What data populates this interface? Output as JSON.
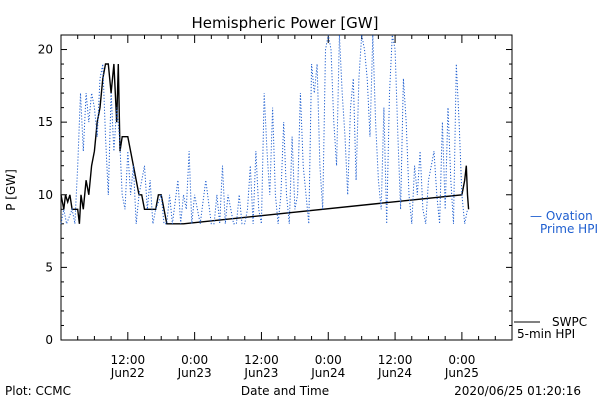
{
  "chart_data": {
    "type": "line",
    "title": "Hemispheric Power [GW]",
    "ylabel": "P [GW]",
    "xlabel": "Date and Time",
    "ylim": [
      0,
      21
    ],
    "yticks": [
      0,
      5,
      10,
      15,
      20
    ],
    "xlim_hours": [
      0,
      81
    ],
    "xticks": [
      {
        "h": 12,
        "time": "12:00",
        "date": "Jun22"
      },
      {
        "h": 24,
        "time": "0:00",
        "date": "Jun23"
      },
      {
        "h": 36,
        "time": "12:00",
        "date": "Jun23"
      },
      {
        "h": 48,
        "time": "0:00",
        "date": "Jun24"
      },
      {
        "h": 60,
        "time": "12:00",
        "date": "Jun24"
      },
      {
        "h": 72,
        "time": "0:00",
        "date": "Jun25"
      }
    ],
    "series": [
      {
        "name": "SWPC 5-min HPI",
        "color": "#000000",
        "style": "solid",
        "points": [
          [
            0,
            10
          ],
          [
            0.5,
            9
          ],
          [
            0.8,
            10
          ],
          [
            1.2,
            9.5
          ],
          [
            1.6,
            10
          ],
          [
            2,
            9
          ],
          [
            3,
            9
          ],
          [
            3.3,
            8
          ],
          [
            3.6,
            10
          ],
          [
            4,
            9
          ],
          [
            4.5,
            11
          ],
          [
            5,
            10
          ],
          [
            5.5,
            12
          ],
          [
            6,
            13
          ],
          [
            6.5,
            15
          ],
          [
            7,
            16
          ],
          [
            7.5,
            18
          ],
          [
            8,
            19
          ],
          [
            8.5,
            19
          ],
          [
            9,
            17
          ],
          [
            9.5,
            19
          ],
          [
            10,
            15
          ],
          [
            10.3,
            19
          ],
          [
            10.6,
            13
          ],
          [
            11,
            14
          ],
          [
            11.5,
            14
          ],
          [
            12,
            14
          ],
          [
            12.5,
            13
          ],
          [
            13,
            12
          ],
          [
            13.5,
            11
          ],
          [
            14,
            10
          ],
          [
            14.5,
            10
          ],
          [
            15,
            9
          ],
          [
            15.5,
            9
          ],
          [
            16,
            9
          ],
          [
            16.5,
            9
          ],
          [
            17,
            9
          ],
          [
            17.5,
            10
          ],
          [
            18,
            10
          ],
          [
            18.5,
            9
          ],
          [
            19,
            8
          ],
          [
            20,
            8
          ],
          [
            22,
            8
          ],
          [
            72,
            10
          ],
          [
            72.5,
            11
          ],
          [
            72.8,
            12
          ],
          [
            73,
            10
          ],
          [
            73.2,
            9
          ]
        ]
      },
      {
        "name": "Ovation Prime HPI",
        "color": "#1f5fd0",
        "style": "dotted",
        "points": [
          [
            0,
            8
          ],
          [
            0.5,
            9
          ],
          [
            1,
            8
          ],
          [
            2,
            9
          ],
          [
            2.5,
            8
          ],
          [
            3,
            12
          ],
          [
            3.5,
            17
          ],
          [
            4,
            13
          ],
          [
            4.5,
            17
          ],
          [
            5,
            15
          ],
          [
            5.5,
            17
          ],
          [
            6,
            16
          ],
          [
            6.5,
            14
          ],
          [
            7,
            18
          ],
          [
            7.5,
            19
          ],
          [
            8,
            14
          ],
          [
            8.5,
            10
          ],
          [
            9,
            17
          ],
          [
            9.5,
            13
          ],
          [
            10,
            16
          ],
          [
            10.5,
            14
          ],
          [
            11,
            10
          ],
          [
            11.5,
            9
          ],
          [
            12,
            13
          ],
          [
            12.5,
            10
          ],
          [
            13,
            12
          ],
          [
            13.5,
            8
          ],
          [
            14,
            10
          ],
          [
            15,
            12
          ],
          [
            15.5,
            9
          ],
          [
            16,
            11
          ],
          [
            16.5,
            8
          ],
          [
            17,
            9
          ],
          [
            18,
            10
          ],
          [
            18.5,
            8
          ],
          [
            19,
            8
          ],
          [
            19.5,
            10
          ],
          [
            20,
            8
          ],
          [
            21,
            11
          ],
          [
            21.5,
            8
          ],
          [
            22,
            10
          ],
          [
            22.5,
            9
          ],
          [
            23,
            13
          ],
          [
            23.5,
            8
          ],
          [
            24,
            10
          ],
          [
            24.5,
            9
          ],
          [
            25,
            8
          ],
          [
            26,
            11
          ],
          [
            27,
            8
          ],
          [
            27.5,
            8
          ],
          [
            28,
            10
          ],
          [
            28.5,
            8
          ],
          [
            29,
            12
          ],
          [
            29.5,
            8
          ],
          [
            30,
            10
          ],
          [
            30.5,
            9
          ],
          [
            31,
            8
          ],
          [
            31.5,
            8
          ],
          [
            32,
            10
          ],
          [
            32.5,
            8
          ],
          [
            33,
            8
          ],
          [
            33.5,
            9
          ],
          [
            34,
            12
          ],
          [
            34.5,
            8
          ],
          [
            35,
            13
          ],
          [
            35.5,
            9
          ],
          [
            36,
            8
          ],
          [
            36.5,
            17
          ],
          [
            37,
            13
          ],
          [
            37.5,
            10
          ],
          [
            38,
            16
          ],
          [
            38.5,
            10
          ],
          [
            39,
            8
          ],
          [
            39.5,
            10
          ],
          [
            40,
            15
          ],
          [
            40.5,
            10
          ],
          [
            41,
            8
          ],
          [
            41.5,
            14
          ],
          [
            42,
            9
          ],
          [
            42.5,
            10
          ],
          [
            43,
            17
          ],
          [
            43.5,
            12
          ],
          [
            44,
            10
          ],
          [
            44.5,
            8
          ],
          [
            45,
            19
          ],
          [
            45.5,
            17
          ],
          [
            46,
            19
          ],
          [
            46.5,
            12
          ],
          [
            47,
            9
          ],
          [
            47.5,
            20
          ],
          [
            48,
            21
          ],
          [
            48.5,
            20
          ],
          [
            49,
            15
          ],
          [
            49.5,
            12
          ],
          [
            50,
            21
          ],
          [
            50.5,
            17
          ],
          [
            51,
            14
          ],
          [
            51.5,
            10
          ],
          [
            52,
            16
          ],
          [
            52.5,
            18
          ],
          [
            53,
            11
          ],
          [
            53.5,
            18
          ],
          [
            54,
            21
          ],
          [
            54.5,
            20
          ],
          [
            55,
            18
          ],
          [
            55.5,
            14
          ],
          [
            56,
            21
          ],
          [
            56.5,
            15
          ],
          [
            57,
            11
          ],
          [
            57.5,
            9
          ],
          [
            58,
            16
          ],
          [
            58.5,
            8
          ],
          [
            59,
            17
          ],
          [
            59.5,
            21
          ],
          [
            60,
            20
          ],
          [
            60.5,
            14
          ],
          [
            61,
            9
          ],
          [
            61.5,
            18
          ],
          [
            62,
            15
          ],
          [
            62.5,
            10
          ],
          [
            63,
            8
          ],
          [
            63.5,
            12
          ],
          [
            64,
            10
          ],
          [
            64.5,
            13
          ],
          [
            65,
            9
          ],
          [
            65.5,
            8
          ],
          [
            66,
            11
          ],
          [
            66.5,
            12
          ],
          [
            67,
            13
          ],
          [
            67.5,
            10
          ],
          [
            68,
            8
          ],
          [
            68.5,
            15
          ],
          [
            69,
            9
          ],
          [
            69.5,
            16
          ],
          [
            70,
            11
          ],
          [
            70.5,
            8
          ],
          [
            71,
            19
          ],
          [
            71.5,
            15
          ],
          [
            72,
            10
          ],
          [
            72.5,
            8
          ],
          [
            73,
            9
          ]
        ]
      }
    ]
  },
  "legend": {
    "ovation_line1": "— Ovation",
    "ovation_line2": "Prime HPI",
    "swpc_line1": "SWPC",
    "swpc_line2": "5-min HPI"
  },
  "footer": {
    "left": "Plot: CCMC",
    "center": "Date and Time",
    "right": "2020/06/25 01:20:16"
  }
}
